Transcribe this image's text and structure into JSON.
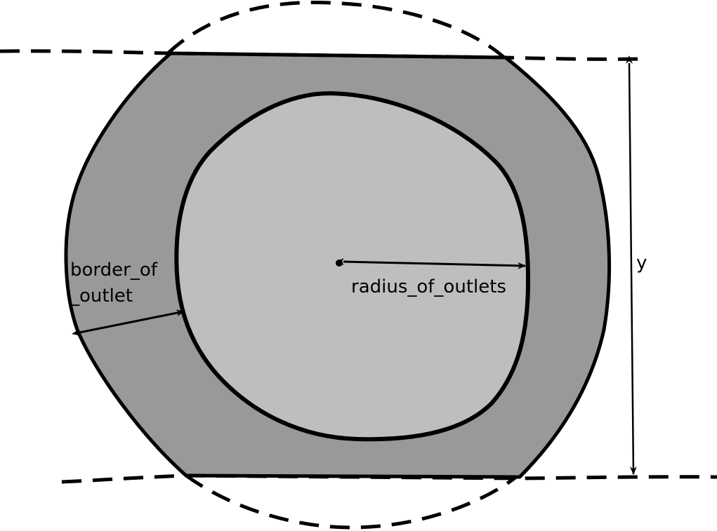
{
  "labels": {
    "border_line1": "border_of",
    "border_line2": "_outlet",
    "radius": "radius_of_outlets",
    "y": "y"
  },
  "colors": {
    "outer_fill": "#999999",
    "inner_fill": "#bebebe",
    "stroke": "#000000",
    "background": "#ffffff"
  }
}
